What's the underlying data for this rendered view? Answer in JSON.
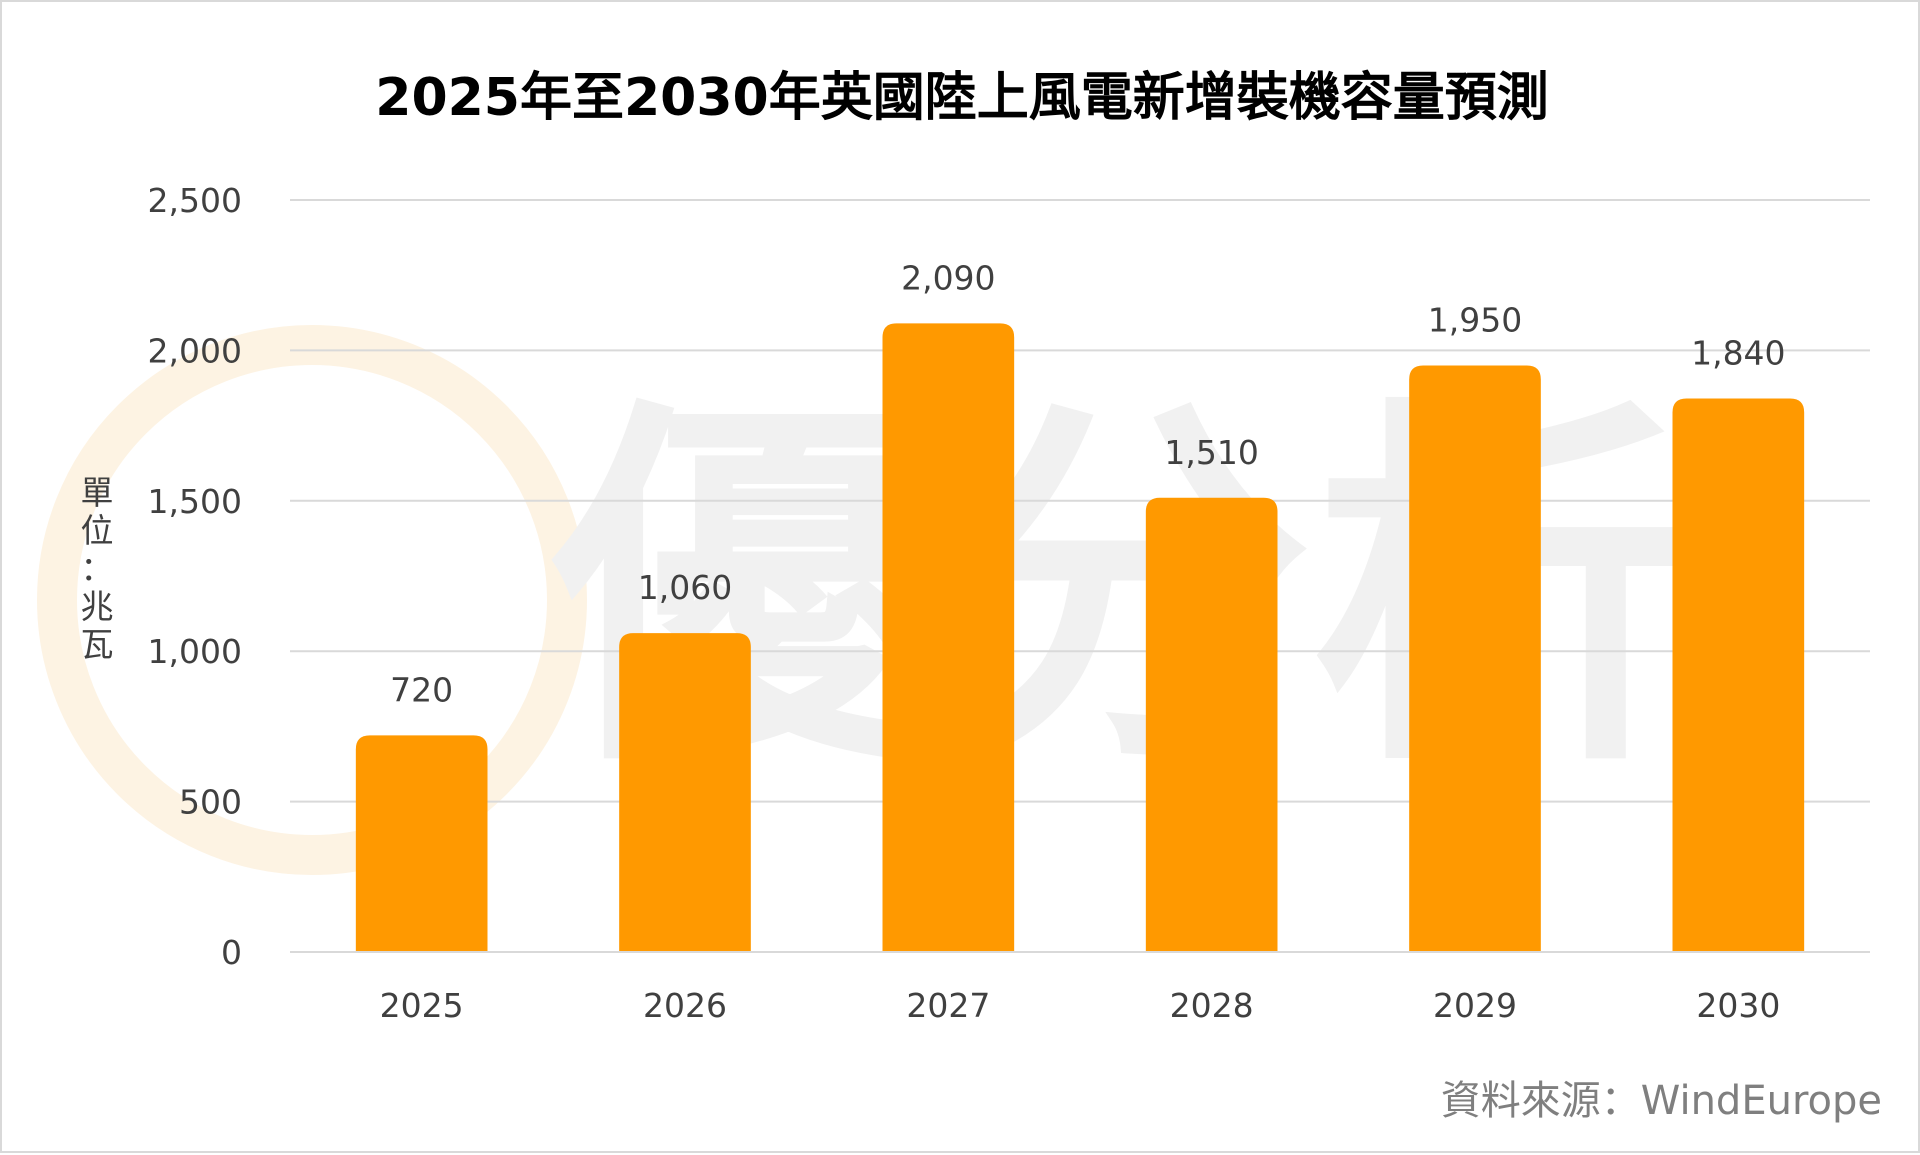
{
  "chart_data": {
    "type": "bar",
    "title": "2025年至2030年英國陸上風電新增裝機容量預測",
    "ylabel": "單位：兆瓦",
    "xlabel": "",
    "categories": [
      "2025",
      "2026",
      "2027",
      "2028",
      "2029",
      "2030"
    ],
    "values": [
      720,
      1060,
      2090,
      1510,
      1950,
      1840
    ],
    "data_labels": [
      "720",
      "1,060",
      "2,090",
      "1,510",
      "1,950",
      "1,840"
    ],
    "ylim": [
      0,
      2500
    ],
    "yticks": [
      0,
      500,
      1000,
      1500,
      2000,
      2500
    ],
    "ytick_labels": [
      "0",
      "500",
      "1,000",
      "1,500",
      "2,000",
      "2,500"
    ],
    "grid": true,
    "legend": "none",
    "bar_color": "#ff9900",
    "source": "資料來源：WindEurope",
    "watermark": "優分析"
  }
}
